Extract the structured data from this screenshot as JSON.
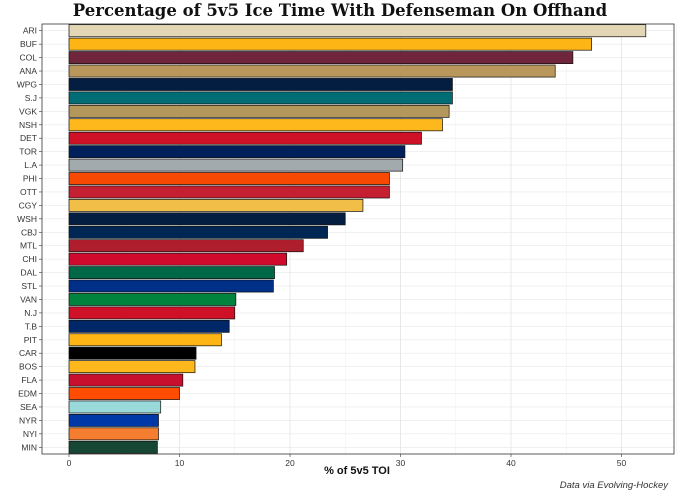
{
  "chart_data": {
    "type": "bar",
    "orientation": "horizontal",
    "title": "Percentage of 5v5 Ice Time With Defenseman On Offhand",
    "xlabel": "% of 5v5 TOI",
    "ylabel": "",
    "caption": "Data via Evolving-Hockey",
    "xlim": [
      0,
      55
    ],
    "xticks": [
      0,
      10,
      20,
      30,
      40,
      50
    ],
    "grid": true,
    "categories": [
      "ARI",
      "BUF",
      "COL",
      "ANA",
      "WPG",
      "S.J",
      "VGK",
      "NSH",
      "DET",
      "TOR",
      "L.A",
      "PHI",
      "OTT",
      "CGY",
      "WSH",
      "CBJ",
      "MTL",
      "CHI",
      "DAL",
      "STL",
      "VAN",
      "N.J",
      "T.B",
      "PIT",
      "CAR",
      "BOS",
      "FLA",
      "EDM",
      "SEA",
      "NYR",
      "NYI",
      "MIN"
    ],
    "values": [
      52.2,
      47.3,
      45.6,
      44.0,
      34.7,
      34.7,
      34.4,
      33.8,
      31.9,
      30.4,
      30.2,
      29.0,
      29.0,
      26.6,
      25.0,
      23.4,
      21.2,
      19.7,
      18.6,
      18.5,
      15.1,
      15.0,
      14.5,
      13.8,
      11.5,
      11.4,
      10.3,
      10.0,
      8.3,
      8.1,
      8.1,
      8.0
    ],
    "colors": [
      "#E2D6B5",
      "#FCB514",
      "#6F263D",
      "#B9975B",
      "#041E42",
      "#006D75",
      "#B4975A",
      "#FFB81C",
      "#CE1126",
      "#00205B",
      "#A2AAAD",
      "#F74902",
      "#C52032",
      "#F1BE48",
      "#041E42",
      "#002654",
      "#AF1E2D",
      "#CF0A2C",
      "#006847",
      "#002F87",
      "#00843D",
      "#CE1126",
      "#002868",
      "#FCB514",
      "#000000",
      "#FFB81C",
      "#C8102E",
      "#FF4C00",
      "#99D9D9",
      "#0038A8",
      "#F47D30",
      "#154734"
    ]
  }
}
